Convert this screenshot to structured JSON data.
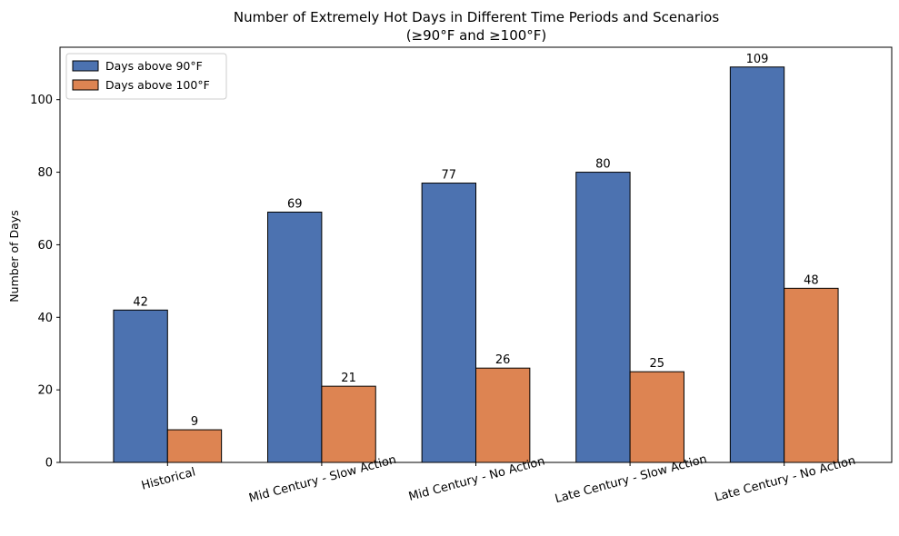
{
  "chart_data": {
    "type": "bar",
    "title": "Number of Extremely Hot Days in Different Time Periods and Scenarios",
    "subtitle": "(≥90°F and ≥100°F)",
    "xlabel": "",
    "ylabel": "Number of Days",
    "ylim": [
      0,
      114.45
    ],
    "yticks": [
      0,
      20,
      40,
      60,
      80,
      100
    ],
    "categories": [
      "Historical",
      "Mid Century - Slow Action",
      "Mid Century - No Action",
      "Late Century - Slow Action",
      "Late Century - No Action"
    ],
    "series": [
      {
        "name": "Days above 90°F",
        "color": "#4c72b0",
        "values": [
          42,
          69,
          77,
          80,
          109
        ]
      },
      {
        "name": "Days above 100°F",
        "color": "#dd8452",
        "values": [
          9,
          21,
          26,
          25,
          48
        ]
      }
    ],
    "grid": false,
    "legend": "top-left",
    "x_tick_rotation": -15
  }
}
